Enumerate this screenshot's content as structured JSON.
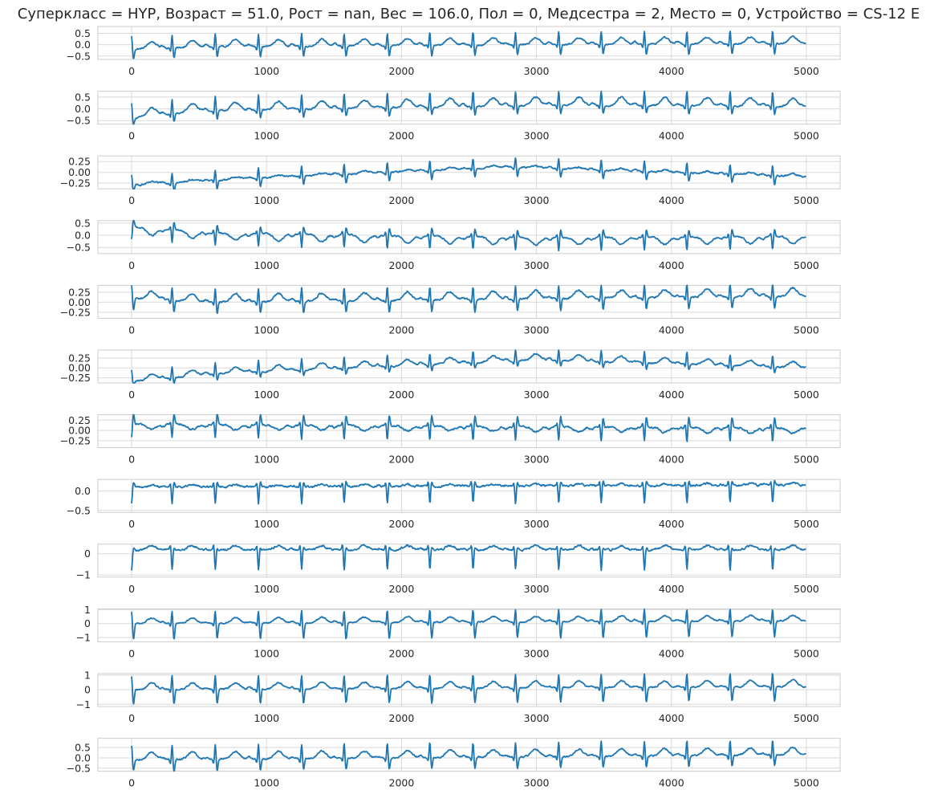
{
  "chart_data": {
    "type": "line",
    "title": "Суперкласс = HYP, Возраст = 51.0, Рост = nan, Вес = 106.0, Пол = 0, Медсестра = 2, Место = 0, Устройство = CS-12   E",
    "x_ticks": [
      0,
      1000,
      2000,
      3000,
      4000,
      5000
    ],
    "xlim": [
      -250,
      5250
    ],
    "n_samples": 5000,
    "grid": true,
    "line_color": "#1f77b4",
    "beats": [
      0,
      300,
      620,
      940,
      1260,
      1575,
      1895,
      2210,
      2530,
      2845,
      3165,
      3480,
      3800,
      4115,
      4435,
      4750
    ],
    "leads": [
      {
        "ylim": [
          -0.65,
          0.8
        ],
        "yticks": [
          -0.5,
          0.0,
          0.5
        ],
        "ytick_labels": [
          "−0.5",
          "0.0",
          "0.5"
        ],
        "r": 0.6,
        "s": -0.45,
        "t": 0.3,
        "p": 0.1,
        "base": -0.05,
        "trend": [
          [
            0,
            -0.15
          ],
          [
            600,
            -0.05
          ],
          [
            3000,
            0.05
          ],
          [
            5000,
            0.1
          ]
        ]
      },
      {
        "ylim": [
          -0.65,
          0.75
        ],
        "yticks": [
          -0.5,
          0.0,
          0.5
        ],
        "ytick_labels": [
          "−0.5",
          "0.0",
          "0.5"
        ],
        "r": 0.65,
        "s": -0.35,
        "t": 0.35,
        "p": 0.1,
        "base": 0.0,
        "trend": [
          [
            0,
            -0.4
          ],
          [
            500,
            -0.1
          ],
          [
            3000,
            0.15
          ],
          [
            5000,
            0.1
          ]
        ]
      },
      {
        "ylim": [
          -0.38,
          0.38
        ],
        "yticks": [
          -0.25,
          0.0,
          0.25
        ],
        "ytick_labels": [
          "−0.25",
          "0.00",
          "0.25"
        ],
        "r": 0.25,
        "s": -0.2,
        "t": 0.05,
        "p": 0.03,
        "base": 0.0,
        "trend": [
          [
            0,
            -0.3
          ],
          [
            800,
            -0.15
          ],
          [
            2800,
            0.12
          ],
          [
            5000,
            -0.1
          ]
        ]
      },
      {
        "ylim": [
          -0.75,
          0.6
        ],
        "yticks": [
          -0.5,
          0.0,
          0.5
        ],
        "ytick_labels": [
          "−0.5",
          "0.0",
          "0.5"
        ],
        "r": -0.55,
        "s": 0.3,
        "t": -0.3,
        "p": -0.1,
        "base": 0.05,
        "trend": [
          [
            0,
            0.3
          ],
          [
            600,
            0.05
          ],
          [
            3000,
            -0.15
          ],
          [
            5000,
            -0.1
          ]
        ]
      },
      {
        "ylim": [
          -0.4,
          0.42
        ],
        "yticks": [
          -0.25,
          0.0,
          0.25
        ],
        "ytick_labels": [
          "−0.25",
          "0.00",
          "0.25"
        ],
        "r": 0.35,
        "s": -0.3,
        "t": 0.2,
        "p": 0.05,
        "base": 0.0,
        "trend": [
          [
            0,
            0.1
          ],
          [
            500,
            0.0
          ],
          [
            5000,
            0.15
          ]
        ]
      },
      {
        "ylim": [
          -0.38,
          0.45
        ],
        "yticks": [
          -0.25,
          0.0,
          0.25
        ],
        "ytick_labels": [
          "−0.25",
          "0.00",
          "0.25"
        ],
        "r": 0.3,
        "s": -0.15,
        "t": 0.15,
        "p": 0.05,
        "base": 0.0,
        "trend": [
          [
            0,
            -0.35
          ],
          [
            600,
            -0.15
          ],
          [
            3000,
            0.2
          ],
          [
            5000,
            0.0
          ]
        ]
      },
      {
        "ylim": [
          -0.42,
          0.38
        ],
        "yticks": [
          -0.25,
          0.0,
          0.25
        ],
        "ytick_labels": [
          "−0.25",
          "0.00",
          "0.25"
        ],
        "r": -0.35,
        "s": 0.25,
        "t": -0.12,
        "p": -0.05,
        "base": 0.1,
        "trend": [
          [
            0,
            0.05
          ],
          [
            5000,
            -0.05
          ]
        ]
      },
      {
        "ylim": [
          -0.55,
          0.3
        ],
        "yticks": [
          -0.5,
          0.0
        ],
        "ytick_labels": [
          "−0.5",
          "0.0"
        ],
        "r": -0.45,
        "s": 0.12,
        "t": 0.05,
        "p": 0.02,
        "base": 0.05,
        "trend": [
          [
            0,
            0.05
          ],
          [
            5000,
            0.1
          ]
        ]
      },
      {
        "ylim": [
          -1.1,
          0.45
        ],
        "yticks": [
          -1,
          0
        ],
        "ytick_labels": [
          "−1",
          "0"
        ],
        "r": -0.95,
        "s": 0.1,
        "t": 0.2,
        "p": 0.05,
        "base": 0.08,
        "trend": [
          [
            0,
            0.1
          ],
          [
            5000,
            0.1
          ]
        ]
      },
      {
        "ylim": [
          -1.3,
          1.05
        ],
        "yticks": [
          -1,
          0,
          1
        ],
        "ytick_labels": [
          "−1",
          "0",
          "1"
        ],
        "r": 0.95,
        "s": -1.15,
        "t": 0.4,
        "p": 0.1,
        "base": 0.0,
        "trend": [
          [
            0,
            0.0
          ],
          [
            5000,
            0.2
          ]
        ]
      },
      {
        "ylim": [
          -1.15,
          1.1
        ],
        "yticks": [
          -1,
          0,
          1
        ],
        "ytick_labels": [
          "−1",
          "0",
          "1"
        ],
        "r": 1.0,
        "s": -1.0,
        "t": 0.45,
        "p": 0.1,
        "base": 0.0,
        "trend": [
          [
            0,
            0.0
          ],
          [
            5000,
            0.2
          ]
        ]
      },
      {
        "ylim": [
          -0.65,
          0.95
        ],
        "yticks": [
          -0.5,
          0.0,
          0.5
        ],
        "ytick_labels": [
          "−0.5",
          "0.0",
          "0.5"
        ],
        "r": 0.75,
        "s": -0.55,
        "t": 0.35,
        "p": 0.08,
        "base": 0.0,
        "trend": [
          [
            0,
            -0.1
          ],
          [
            5000,
            0.15
          ]
        ]
      }
    ]
  }
}
